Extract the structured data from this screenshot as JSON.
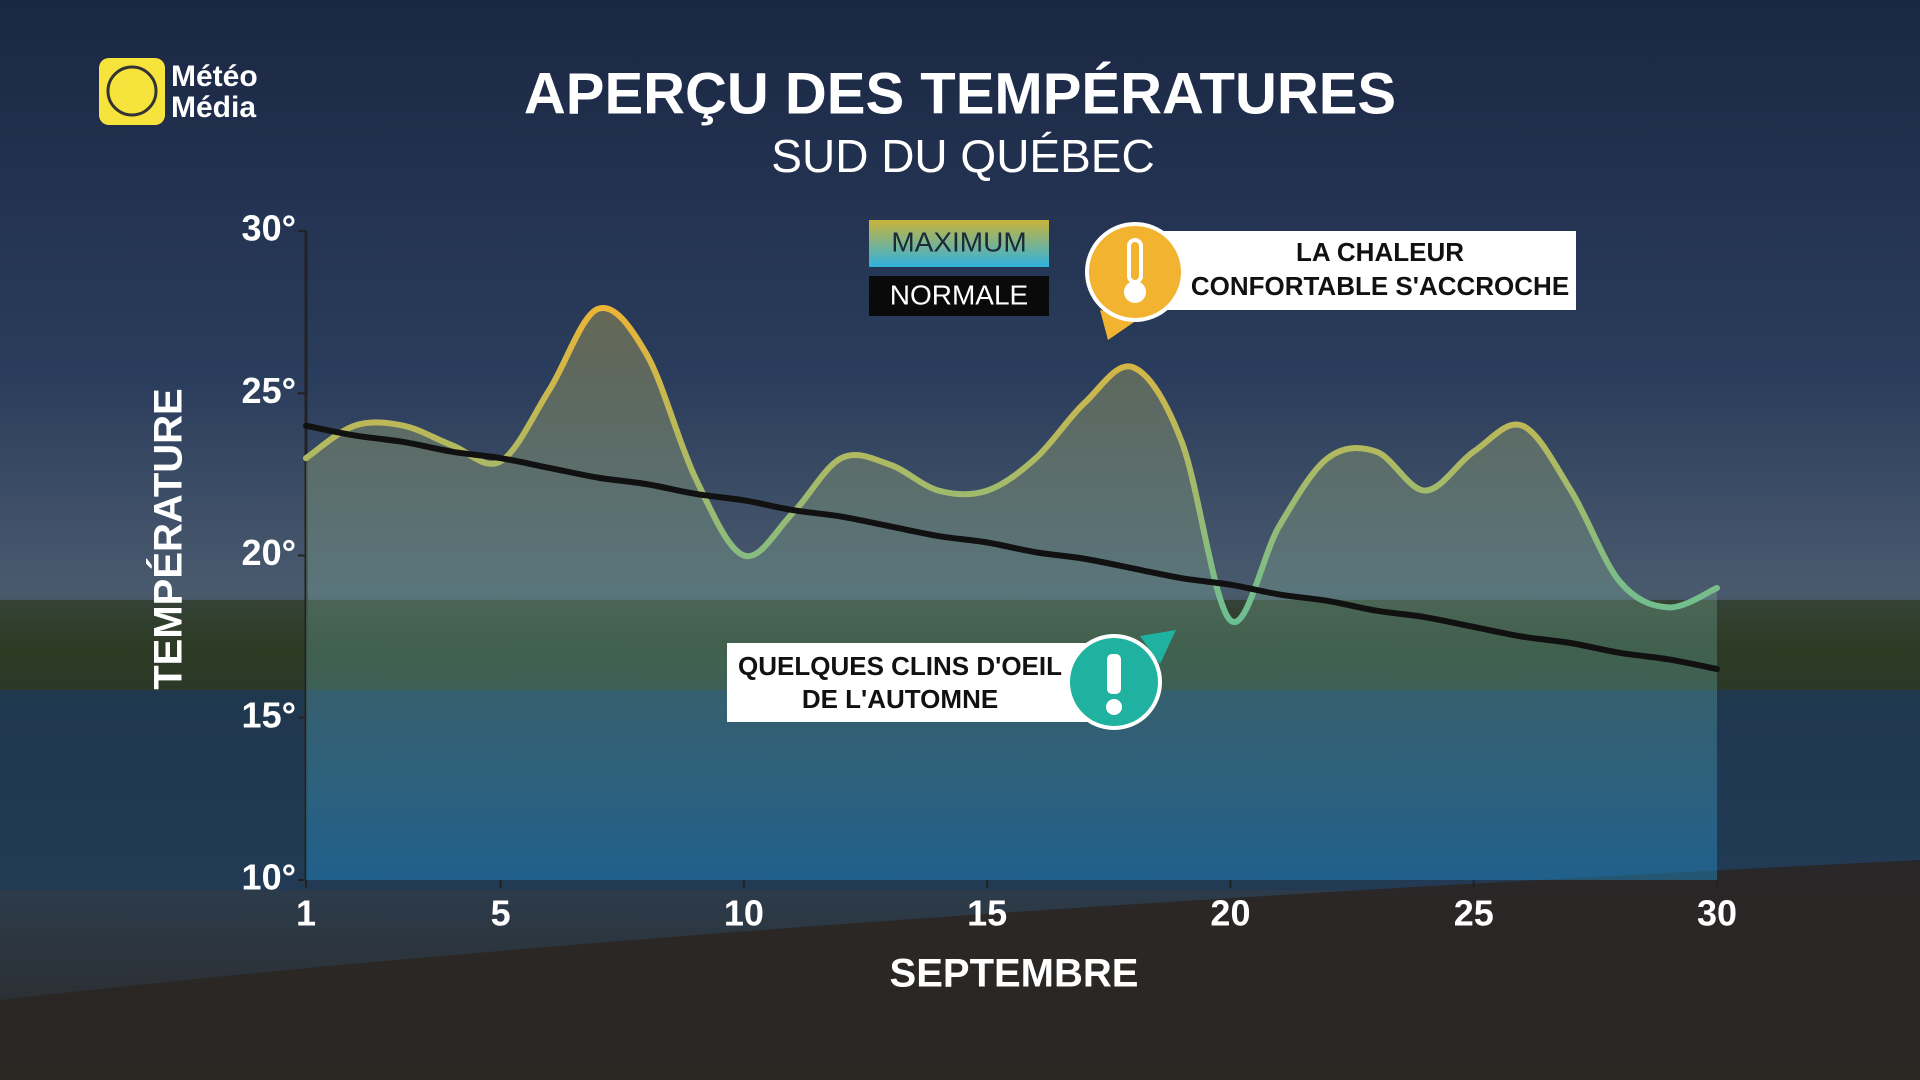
{
  "chart_data": {
    "type": "line",
    "logo": [
      "Météo",
      "Média"
    ],
    "title": "APERÇU DES TEMPÉRATURES",
    "subtitle": "SUD DU QUÉBEC",
    "xlabel": "SEPTEMBRE",
    "ylabel": "TEMPÉRATURE",
    "x": [
      1,
      2,
      3,
      4,
      5,
      6,
      7,
      8,
      9,
      10,
      11,
      12,
      13,
      14,
      15,
      16,
      17,
      18,
      19,
      20,
      21,
      22,
      23,
      24,
      25,
      26,
      27,
      28,
      29,
      30
    ],
    "xlim": [
      1,
      30
    ],
    "xticks": [
      1,
      5,
      10,
      15,
      20,
      25,
      30
    ],
    "ylim": [
      10,
      30
    ],
    "yticks": [
      {
        "value": 10,
        "label": "10°"
      },
      {
        "value": 15,
        "label": "15°"
      },
      {
        "value": 20,
        "label": "20°"
      },
      {
        "value": 25,
        "label": "25°"
      },
      {
        "value": 30,
        "label": "30°"
      }
    ],
    "grid": false,
    "series": [
      {
        "name": "MAXIMUM",
        "color": [
          "#f2b430",
          "#55c0a5"
        ],
        "values": [
          23.0,
          24.0,
          24.0,
          23.4,
          22.9,
          25.1,
          27.6,
          26.2,
          22.4,
          20.0,
          21.3,
          23.0,
          22.8,
          22.0,
          22.0,
          23.0,
          24.7,
          25.8,
          23.5,
          18.0,
          20.9,
          23.0,
          23.2,
          22.0,
          23.2,
          24.0,
          22.0,
          19.2,
          18.4,
          19.0
        ]
      },
      {
        "name": "NORMALE",
        "color": "#111111",
        "values": [
          24.0,
          23.7,
          23.5,
          23.2,
          23.0,
          22.7,
          22.4,
          22.2,
          21.9,
          21.7,
          21.4,
          21.2,
          20.9,
          20.6,
          20.4,
          20.1,
          19.9,
          19.6,
          19.3,
          19.1,
          18.8,
          18.6,
          18.3,
          18.1,
          17.8,
          17.5,
          17.3,
          17.0,
          16.8,
          16.5
        ]
      }
    ],
    "annotations": [
      {
        "lines": [
          "LA CHALEUR",
          "CONFORTABLE S'ACCROCHE"
        ]
      },
      {
        "lines": [
          "QUELQUES CLINS D'OEIL",
          "DE L'AUTOMNE"
        ]
      }
    ]
  }
}
